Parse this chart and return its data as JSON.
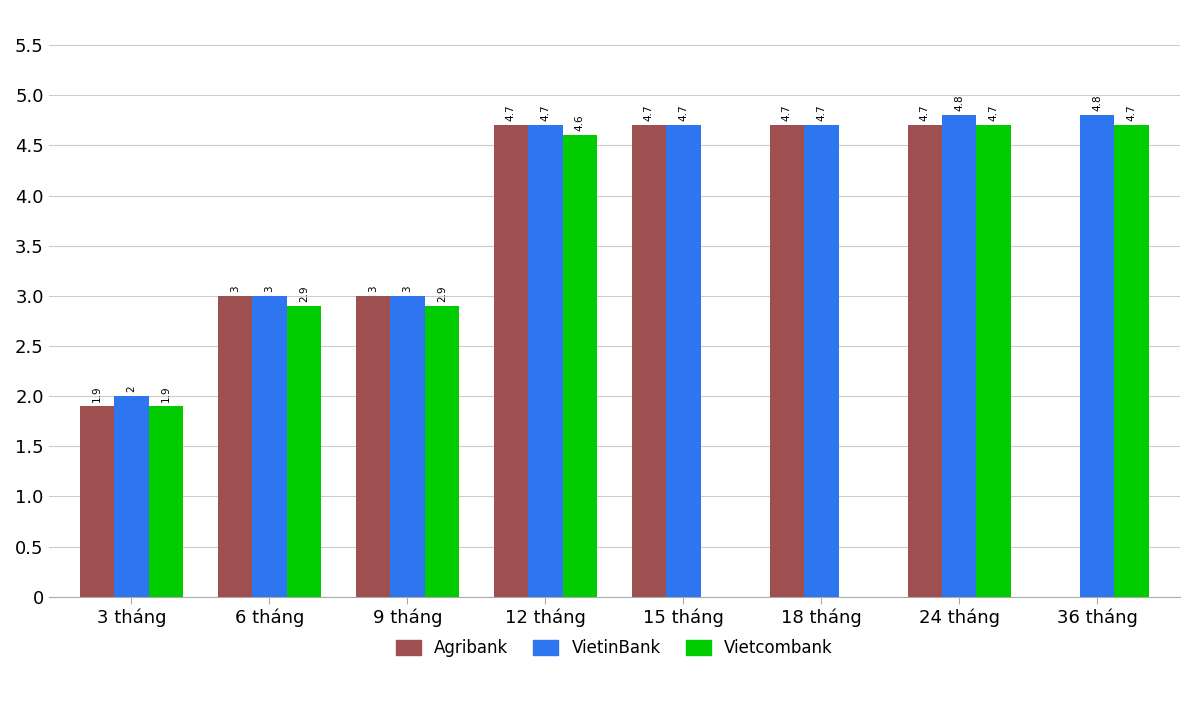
{
  "categories": [
    "3 tháng",
    "6 tháng",
    "9 tháng",
    "12 tháng",
    "15 tháng",
    "18 tháng",
    "24 tháng",
    "36 tháng"
  ],
  "series": {
    "Agribank": [
      1.9,
      3.0,
      3.0,
      4.7,
      4.7,
      4.7,
      4.7,
      null
    ],
    "VietinBank": [
      2.0,
      3.0,
      3.0,
      4.7,
      4.7,
      4.7,
      4.8,
      4.8
    ],
    "Vietcombank": [
      1.9,
      2.9,
      2.9,
      4.6,
      null,
      null,
      4.7,
      4.7
    ]
  },
  "colors": {
    "Agribank": "#9e4f4f",
    "VietinBank": "#2e75f0",
    "Vietcombank": "#00cc00"
  },
  "bar_width": 0.25,
  "ylim": [
    0,
    5.8
  ],
  "yticks": [
    0,
    0.5,
    1.0,
    1.5,
    2.0,
    2.5,
    3.0,
    3.5,
    4.0,
    4.5,
    5.0,
    5.5
  ],
  "ytick_labels": [
    "0",
    "0.5",
    "1.0",
    "1.5",
    "2.0",
    "2.5",
    "3.0",
    "3.5",
    "4.0",
    "4.5",
    "5.0",
    "5.5"
  ],
  "label_fontsize": 7.5,
  "legend_fontsize": 12,
  "tick_fontsize": 13,
  "background_color": "#ffffff",
  "grid_color": "#cccccc"
}
